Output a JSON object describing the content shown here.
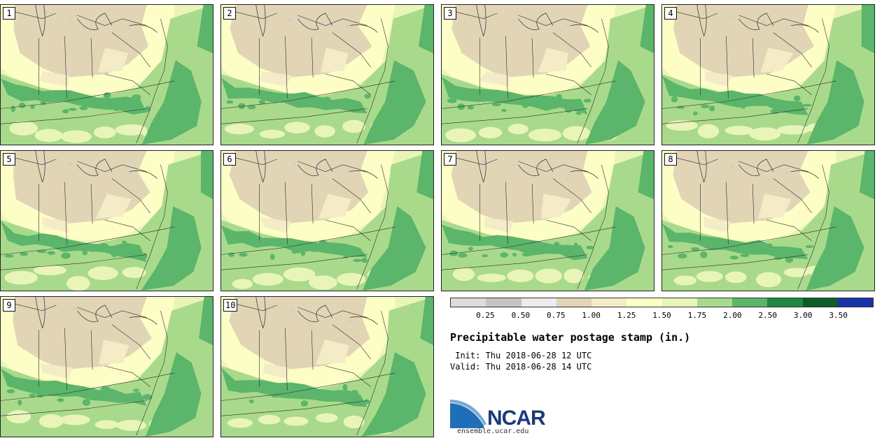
{
  "stamps": [
    "1",
    "2",
    "3",
    "4",
    "5",
    "6",
    "7",
    "8",
    "9",
    "10"
  ],
  "colorbar": {
    "ticks": [
      "0.25",
      "0.50",
      "0.75",
      "1.00",
      "1.25",
      "1.50",
      "1.75",
      "2.00",
      "2.50",
      "3.00",
      "3.50"
    ],
    "colors": [
      "#dcdcdc",
      "#c4c4c4",
      "#ececec",
      "#e1d5b6",
      "#f3ecc6",
      "#fdfdc6",
      "#e9f5b8",
      "#a9da8b",
      "#5bb56a",
      "#1d8a40",
      "#0d5e26",
      "#1833a8"
    ]
  },
  "title": "Precipitable water postage stamp (in.)",
  "init": " Init: Thu 2018-06-28 12 UTC",
  "valid": "Valid: Thu 2018-06-28 14 UTC",
  "logo": {
    "text": "NCAR",
    "url": "ensemble.ucar.edu"
  },
  "map_colors": {
    "dry": "#e1d5b6",
    "pale": "#f3ecc6",
    "light": "#fdfdc6",
    "base": "#e9f5b8",
    "moist": "#a9da8b",
    "wet": "#5bb56a",
    "gray": "#cfcfcf"
  }
}
